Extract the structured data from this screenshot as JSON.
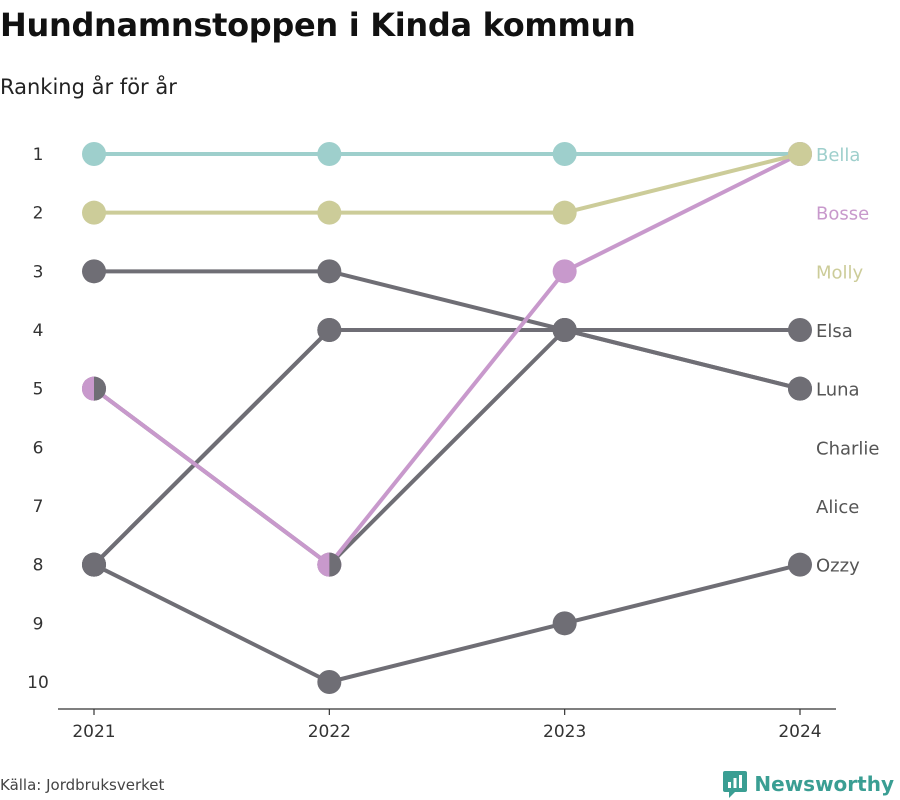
{
  "title": "Hundnamnstoppen i Kinda kommun",
  "subtitle": "Ranking år för år",
  "source": "Källa: Jordbruksverket",
  "brand": {
    "name": "Newsworthy",
    "icon": "newsworthy-logo-icon",
    "color": "#3a9e93"
  },
  "chart_data": {
    "type": "line",
    "x": [
      "2021",
      "2022",
      "2023",
      "2024"
    ],
    "y_ticks": [
      1,
      2,
      3,
      4,
      5,
      6,
      7,
      8,
      9,
      10
    ],
    "ylim": [
      1,
      10
    ],
    "y_inverted": true,
    "grid": false,
    "legend": "direct labels at right end",
    "series": [
      {
        "name": "Bella",
        "values": [
          1,
          1,
          1,
          1
        ],
        "color": "#9ecfcc",
        "label_rank": 1
      },
      {
        "name": "Bosse",
        "values": [
          5,
          8,
          3,
          1
        ],
        "color": "#c899cc",
        "label_rank": 2
      },
      {
        "name": "Molly",
        "values": [
          2,
          2,
          2,
          1
        ],
        "color": "#cccc99",
        "label_rank": 3
      },
      {
        "name": "Elsa",
        "values": [
          8,
          4,
          4,
          4
        ],
        "color": "#6f6e75",
        "label_rank": 4
      },
      {
        "name": "Luna",
        "values": [
          3,
          3,
          4,
          5
        ],
        "color": "#6f6e75",
        "label_rank": 5
      },
      {
        "name": "Charlie",
        "values": [
          5,
          8,
          4,
          5
        ],
        "color": "#6f6e75",
        "label_rank": 6
      },
      {
        "name": "Alice",
        "values": [
          8,
          4,
          null,
          null
        ],
        "color": "#6f6e75",
        "label_rank": 7
      },
      {
        "name": "Ozzy",
        "values": [
          8,
          10,
          9,
          8
        ],
        "color": "#6f6e75",
        "label_rank": 8
      }
    ]
  }
}
